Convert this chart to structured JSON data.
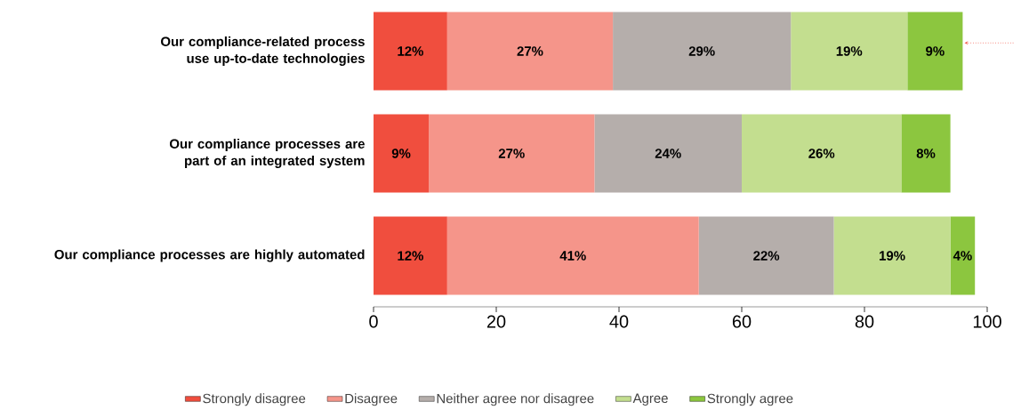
{
  "chart_data": {
    "type": "bar",
    "orientation": "horizontal",
    "stacked": true,
    "categories": [
      "Our compliance-related process use up-to-date technologies",
      "Our compliance processes are part of an integrated system",
      "Our compliance processes are highly automated"
    ],
    "series": [
      {
        "name": "Strongly disagree",
        "color": "#f04e3e",
        "values": [
          12,
          9,
          12
        ],
        "value_labels": [
          "12%",
          "9%",
          "12%"
        ]
      },
      {
        "name": "Disagree",
        "color": "#f5958a",
        "values": [
          27,
          27,
          41
        ],
        "value_labels": [
          "27%",
          "27%",
          "41%"
        ]
      },
      {
        "name": "Neither agree nor disagree",
        "color": "#b5aeab",
        "values": [
          29,
          24,
          22
        ],
        "value_labels": [
          "29%",
          "24%",
          "22%"
        ]
      },
      {
        "name": "Agree",
        "color": "#c3de8f",
        "values": [
          19,
          26,
          19
        ],
        "value_labels": [
          "19%",
          "26%",
          "19%"
        ]
      },
      {
        "name": "Strongly agree",
        "color": "#8cc63f",
        "values": [
          9,
          8,
          4
        ],
        "value_labels": [
          "9%",
          "8%",
          "4%"
        ]
      }
    ],
    "xlim": [
      0,
      100
    ],
    "xticks": [
      0,
      20,
      40,
      60,
      80,
      100
    ],
    "grid": false,
    "legend": "bottom"
  }
}
